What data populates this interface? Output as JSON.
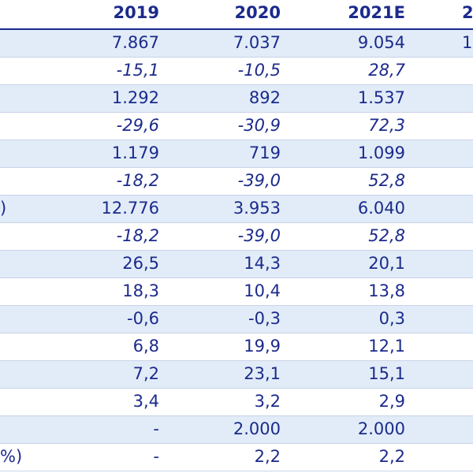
{
  "header": {
    "col1": "2019",
    "col2": "2020",
    "col3": "2021E",
    "col4": "2"
  },
  "rows": [
    {
      "label": "",
      "v1": "7.867",
      "v2": "7.037",
      "v3": "9.054",
      "v4": "1",
      "italic": false,
      "shaded": true
    },
    {
      "label": "",
      "v1": "-15,1",
      "v2": "-10,5",
      "v3": "28,7",
      "v4": "",
      "italic": true,
      "shaded": false
    },
    {
      "label": "",
      "v1": "1.292",
      "v2": "892",
      "v3": "1.537",
      "v4": "",
      "italic": false,
      "shaded": true
    },
    {
      "label": "",
      "v1": "-29,6",
      "v2": "-30,9",
      "v3": "72,3",
      "v4": "",
      "italic": true,
      "shaded": false
    },
    {
      "label": "",
      "v1": "1.179",
      "v2": "719",
      "v3": "1.099",
      "v4": "",
      "italic": false,
      "shaded": true
    },
    {
      "label": "",
      "v1": "-18,2",
      "v2": "-39,0",
      "v3": "52,8",
      "v4": "",
      "italic": true,
      "shaded": false
    },
    {
      "label": ")",
      "v1": "12.776",
      "v2": "3.953",
      "v3": "6.040",
      "v4": "",
      "italic": false,
      "shaded": true
    },
    {
      "label": "",
      "v1": "-18,2",
      "v2": "-39,0",
      "v3": "52,8",
      "v4": "",
      "italic": true,
      "shaded": false
    },
    {
      "label": "",
      "v1": "26,5",
      "v2": "14,3",
      "v3": "20,1",
      "v4": "",
      "italic": false,
      "shaded": true
    },
    {
      "label": "",
      "v1": "18,3",
      "v2": "10,4",
      "v3": "13,8",
      "v4": "",
      "italic": false,
      "shaded": false
    },
    {
      "label": "",
      "v1": "-0,6",
      "v2": "-0,3",
      "v3": "0,3",
      "v4": "",
      "italic": false,
      "shaded": true
    },
    {
      "label": "",
      "v1": "6,8",
      "v2": "19,9",
      "v3": "12,1",
      "v4": "",
      "italic": false,
      "shaded": false
    },
    {
      "label": "",
      "v1": "7,2",
      "v2": "23,1",
      "v3": "15,1",
      "v4": "",
      "italic": false,
      "shaded": true
    },
    {
      "label": "",
      "v1": "3,4",
      "v2": "3,2",
      "v3": "2,9",
      "v4": "",
      "italic": false,
      "shaded": false
    },
    {
      "label": "",
      "v1": "-",
      "v2": "2.000",
      "v3": "2.000",
      "v4": "",
      "italic": false,
      "shaded": true
    },
    {
      "label": "%)",
      "v1": "-",
      "v2": "2,2",
      "v3": "2,2",
      "v4": "",
      "italic": false,
      "shaded": false
    }
  ]
}
